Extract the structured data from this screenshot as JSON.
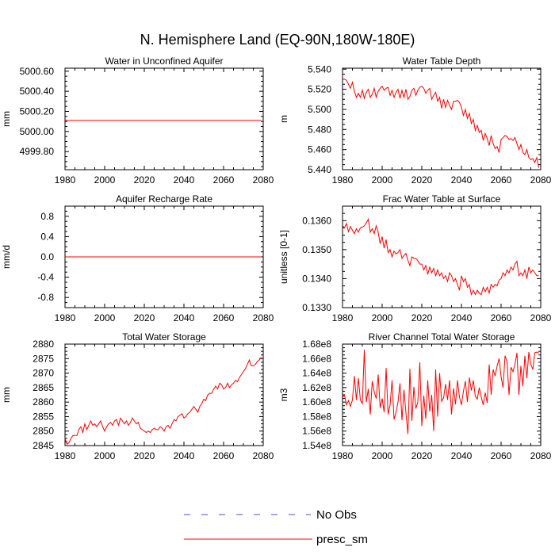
{
  "figure": {
    "title": "N. Hemisphere Land (EQ-90N,180W-180E)"
  },
  "legend": {
    "items": [
      {
        "label": "No Obs",
        "color": "#4b4bd1",
        "style": "dashed"
      },
      {
        "label": "presc_sm",
        "color": "#ff0000",
        "style": "solid"
      }
    ]
  },
  "colors": {
    "series": "#ff0000",
    "obs": "#4b4bd1"
  },
  "chart_data": [
    {
      "type": "line",
      "title": "Water in Unconfined Aquifer",
      "xlabel": "",
      "ylabel": "mm",
      "xlim": [
        1980,
        2080
      ],
      "ylim": [
        4999.62,
        5000.63
      ],
      "xticks": [
        1980,
        2000,
        2020,
        2040,
        2060,
        2080
      ],
      "xtick_labels": [
        "1980",
        "2000",
        "2020",
        "2040",
        "2060",
        "2080"
      ],
      "yticks": [
        4999.8,
        5000.0,
        5000.2,
        5000.4,
        5000.6
      ],
      "ytick_labels": [
        "4999.80",
        "5000.00",
        "5000.20",
        "5000.40",
        "5000.60"
      ],
      "series": [
        {
          "name": "presc_sm",
          "x_start": 1980,
          "x_step": 1,
          "values": [
            5000.11,
            5000.11,
            5000.11,
            5000.11,
            5000.11,
            5000.11,
            5000.11,
            5000.11,
            5000.11,
            5000.11,
            5000.11,
            5000.11,
            5000.11,
            5000.11,
            5000.11,
            5000.11,
            5000.11,
            5000.11,
            5000.11,
            5000.11,
            5000.11,
            5000.11,
            5000.11,
            5000.11,
            5000.11,
            5000.11,
            5000.11,
            5000.11,
            5000.11,
            5000.11,
            5000.11,
            5000.11,
            5000.11,
            5000.11,
            5000.11,
            5000.11,
            5000.11,
            5000.11,
            5000.11,
            5000.11,
            5000.11,
            5000.11,
            5000.11,
            5000.11,
            5000.11,
            5000.11,
            5000.11,
            5000.11,
            5000.11,
            5000.11,
            5000.11,
            5000.11,
            5000.11,
            5000.11,
            5000.11,
            5000.11,
            5000.11,
            5000.11,
            5000.11,
            5000.11,
            5000.11,
            5000.11,
            5000.11,
            5000.11,
            5000.11,
            5000.11,
            5000.11,
            5000.11,
            5000.11,
            5000.11,
            5000.11,
            5000.11,
            5000.11,
            5000.11,
            5000.11,
            5000.11,
            5000.11,
            5000.11,
            5000.11,
            5000.11,
            5000.11,
            5000.11,
            5000.11,
            5000.11,
            5000.11,
            5000.11,
            5000.11,
            5000.11,
            5000.11,
            5000.11,
            5000.11,
            5000.11,
            5000.11,
            5000.11,
            5000.11,
            5000.11,
            5000.11,
            5000.11,
            5000.11,
            5000.11
          ]
        }
      ]
    },
    {
      "type": "line",
      "title": "Water Table Depth",
      "xlabel": "",
      "ylabel": "m",
      "xlim": [
        1980,
        2080
      ],
      "ylim": [
        5.44,
        5.541
      ],
      "xticks": [
        1980,
        2000,
        2020,
        2040,
        2060,
        2080
      ],
      "xtick_labels": [
        "1980",
        "2000",
        "2020",
        "2040",
        "2060",
        "2080"
      ],
      "yticks": [
        5.44,
        5.46,
        5.48,
        5.5,
        5.52,
        5.54
      ],
      "ytick_labels": [
        "5.440",
        "5.460",
        "5.480",
        "5.500",
        "5.520",
        "5.540"
      ],
      "series": [
        {
          "name": "presc_sm",
          "x_start": 1980,
          "x_step": 1,
          "values": [
            5.53,
            5.53,
            5.529,
            5.525,
            5.521,
            5.527,
            5.518,
            5.512,
            5.516,
            5.512,
            5.519,
            5.511,
            5.517,
            5.52,
            5.512,
            5.515,
            5.521,
            5.512,
            5.518,
            5.521,
            5.523,
            5.519,
            5.521,
            5.522,
            5.514,
            5.519,
            5.512,
            5.517,
            5.52,
            5.511,
            5.519,
            5.512,
            5.52,
            5.51,
            5.513,
            5.519,
            5.521,
            5.514,
            5.519,
            5.522,
            5.523,
            5.521,
            5.516,
            5.519,
            5.521,
            5.51,
            5.514,
            5.517,
            5.508,
            5.512,
            5.501,
            5.51,
            5.502,
            5.509,
            5.504,
            5.5,
            5.508,
            5.508,
            5.509,
            5.507,
            5.502,
            5.494,
            5.5,
            5.491,
            5.496,
            5.486,
            5.49,
            5.479,
            5.484,
            5.477,
            5.479,
            5.469,
            5.476,
            5.471,
            5.464,
            5.474,
            5.466,
            5.461,
            5.463,
            5.457,
            5.47,
            5.472,
            5.474,
            5.473,
            5.47,
            5.471,
            5.469,
            5.472,
            5.466,
            5.46,
            5.465,
            5.457,
            5.455,
            5.46,
            5.452,
            5.45,
            5.451,
            5.447,
            5.452,
            5.442
          ]
        }
      ]
    },
    {
      "type": "line",
      "title": "Aquifer Recharge Rate",
      "xlabel": "",
      "ylabel": "mm/d",
      "xlim": [
        1980,
        2080
      ],
      "ylim": [
        -1.0,
        1.0
      ],
      "xticks": [
        1980,
        2000,
        2020,
        2040,
        2060,
        2080
      ],
      "xtick_labels": [
        "1980",
        "2000",
        "2020",
        "2040",
        "2060",
        "2080"
      ],
      "yticks": [
        -0.8,
        -0.4,
        0.0,
        0.4,
        0.8
      ],
      "ytick_labels": [
        "-0.8",
        "-0.4",
        "0.0",
        "0.4",
        "0.8"
      ],
      "series": [
        {
          "name": "presc_sm",
          "x_start": 1980,
          "x_step": 1,
          "values": [
            0,
            0,
            0,
            0,
            0,
            0,
            0,
            0,
            0,
            0,
            0,
            0,
            0,
            0,
            0,
            0,
            0,
            0,
            0,
            0,
            0,
            0,
            0,
            0,
            0,
            0,
            0,
            0,
            0,
            0,
            0,
            0,
            0,
            0,
            0,
            0,
            0,
            0,
            0,
            0,
            0,
            0,
            0,
            0,
            0,
            0,
            0,
            0,
            0,
            0,
            0,
            0,
            0,
            0,
            0,
            0,
            0,
            0,
            0,
            0,
            0,
            0,
            0,
            0,
            0,
            0,
            0,
            0,
            0,
            0,
            0,
            0,
            0,
            0,
            0,
            0,
            0,
            0,
            0,
            0,
            0,
            0,
            0,
            0,
            0,
            0,
            0,
            0,
            0,
            0,
            0,
            0,
            0,
            0,
            0,
            0,
            0,
            0,
            0,
            0
          ]
        }
      ]
    },
    {
      "type": "line",
      "title": "Frac Water Table at Surface",
      "xlabel": "",
      "ylabel": "unitless [0-1]",
      "xlim": [
        1980,
        2080
      ],
      "ylim": [
        0.133,
        0.1365
      ],
      "xticks": [
        1980,
        2000,
        2020,
        2040,
        2060,
        2080
      ],
      "xtick_labels": [
        "1980",
        "2000",
        "2020",
        "2040",
        "2060",
        "2080"
      ],
      "yticks": [
        0.133,
        0.134,
        0.135,
        0.136
      ],
      "ytick_labels": [
        "0.1330",
        "0.1340",
        "0.1350",
        "0.1360"
      ],
      "series": [
        {
          "name": "presc_sm",
          "x_start": 1980,
          "x_step": 1,
          "values": [
            0.13583,
            0.13575,
            0.1359,
            0.13562,
            0.1358,
            0.13567,
            0.13555,
            0.13572,
            0.1356,
            0.13575,
            0.13578,
            0.13582,
            0.13592,
            0.13605,
            0.1356,
            0.13572,
            0.13555,
            0.13582,
            0.1356,
            0.1352,
            0.13545,
            0.13505,
            0.13535,
            0.1349,
            0.135,
            0.13475,
            0.13495,
            0.13485,
            0.1349,
            0.135,
            0.1347,
            0.1348,
            0.13487,
            0.13463,
            0.13445,
            0.13475,
            0.1347,
            0.1347,
            0.13462,
            0.1345,
            0.1345,
            0.1343,
            0.13445,
            0.13415,
            0.1344,
            0.1342,
            0.13435,
            0.1341,
            0.1343,
            0.1341,
            0.1342,
            0.134,
            0.1341,
            0.1339,
            0.1342,
            0.1341,
            0.1339,
            0.134,
            0.1338,
            0.1336,
            0.1341,
            0.1339,
            0.134,
            0.1337,
            0.1338,
            0.13345,
            0.1336,
            0.13345,
            0.1336,
            0.1335,
            0.13345,
            0.1337,
            0.13355,
            0.1337,
            0.1335,
            0.1338,
            0.1337,
            0.1338,
            0.13375,
            0.13395,
            0.134,
            0.1342,
            0.1341,
            0.1343,
            0.1342,
            0.1344,
            0.1343,
            0.1345,
            0.1346,
            0.1341,
            0.1342,
            0.1341,
            0.1343,
            0.134,
            0.1344,
            0.1342,
            0.1343,
            0.1342,
            0.1341,
            0.1341
          ]
        }
      ]
    },
    {
      "type": "line",
      "title": "Total Water Storage",
      "xlabel": "",
      "ylabel": "mm",
      "xlim": [
        1980,
        2080
      ],
      "ylim": [
        2845,
        2880
      ],
      "xticks": [
        1980,
        2000,
        2020,
        2040,
        2060,
        2080
      ],
      "xtick_labels": [
        "1980",
        "2000",
        "2020",
        "2040",
        "2060",
        "2080"
      ],
      "yticks": [
        2845,
        2850,
        2855,
        2860,
        2865,
        2870,
        2875,
        2880
      ],
      "ytick_labels": [
        "2845",
        "2850",
        "2855",
        "2860",
        "2865",
        "2870",
        "2875",
        "2880"
      ],
      "series": [
        {
          "name": "presc_sm",
          "x_start": 1980,
          "x_step": 1,
          "values": [
            2847.5,
            2845.5,
            2846.0,
            2847.5,
            2848.5,
            2848.5,
            2848.5,
            2850.5,
            2851.5,
            2849.5,
            2852.5,
            2850.5,
            2852.0,
            2853.5,
            2852.0,
            2852.5,
            2851.5,
            2852.5,
            2853.5,
            2851.5,
            2850.0,
            2851.5,
            2852.5,
            2853.0,
            2852.0,
            2853.5,
            2854.0,
            2852.0,
            2854.5,
            2853.5,
            2852.5,
            2853.5,
            2852.0,
            2853.0,
            2854.5,
            2853.5,
            2852.5,
            2853.0,
            2851.0,
            2850.5,
            2850.0,
            2849.5,
            2850.0,
            2849.5,
            2850.5,
            2851.0,
            2850.5,
            2850.5,
            2851.5,
            2851.0,
            2850.0,
            2851.5,
            2852.0,
            2851.0,
            2852.5,
            2854.0,
            2853.5,
            2855.0,
            2855.5,
            2856.0,
            2854.5,
            2855.0,
            2856.0,
            2856.5,
            2857.5,
            2858.5,
            2857.5,
            2856.5,
            2858.5,
            2859.5,
            2861.0,
            2860.5,
            2862.5,
            2863.0,
            2863.0,
            2864.5,
            2865.5,
            2864.5,
            2866.5,
            2866.0,
            2864.5,
            2865.0,
            2866.5,
            2865.0,
            2866.0,
            2866.5,
            2867.5,
            2867.0,
            2868.5,
            2869.5,
            2870.5,
            2871.5,
            2873.0,
            2874.5,
            2872.5,
            2872.5,
            2873.0,
            2874.0,
            2874.5,
            2875.5
          ]
        }
      ]
    },
    {
      "type": "line",
      "title": "River Channel Total Water Storage",
      "xlabel": "",
      "ylabel": "m3",
      "xlim": [
        1980,
        2080
      ],
      "ylim": [
        154000000.0,
        168000000.0
      ],
      "xticks": [
        1980,
        2000,
        2020,
        2040,
        2060,
        2080
      ],
      "xtick_labels": [
        "1980",
        "2000",
        "2020",
        "2040",
        "2060",
        "2080"
      ],
      "yticks": [
        154000000.0,
        156000000.0,
        158000000.0,
        160000000.0,
        162000000.0,
        164000000.0,
        166000000.0,
        168000000.0
      ],
      "ytick_labels": [
        "1.54e8",
        "1.56e8",
        "1.58e8",
        "1.60e8",
        "1.62e8",
        "1.64e8",
        "1.66e8",
        "1.68e8"
      ],
      "series": [
        {
          "name": "presc_sm",
          "x_start": 1980,
          "x_step": 1,
          "values": [
            160600000.0,
            161000000.0,
            159600000.0,
            160200000.0,
            159400000.0,
            160300000.0,
            163600000.0,
            160300000.0,
            163300000.0,
            160300000.0,
            159800000.0,
            167200000.0,
            160000000.0,
            161800000.0,
            158300000.0,
            162900000.0,
            161400000.0,
            160500000.0,
            163800000.0,
            159200000.0,
            160500000.0,
            158600000.0,
            164700000.0,
            158300000.0,
            159600000.0,
            163000000.0,
            157600000.0,
            158600000.0,
            160000000.0,
            162600000.0,
            157500000.0,
            161700000.0,
            158500000.0,
            155600000.0,
            164600000.0,
            157400000.0,
            162100000.0,
            159100000.0,
            160000000.0,
            165500000.0,
            156700000.0,
            160900000.0,
            157700000.0,
            163000000.0,
            158700000.0,
            161000000.0,
            156000000.0,
            164500000.0,
            158000000.0,
            164000000.0,
            160100000.0,
            160600000.0,
            162500000.0,
            160300000.0,
            163000000.0,
            158300000.0,
            161900000.0,
            159700000.0,
            163000000.0,
            160700000.0,
            159600000.0,
            161500000.0,
            162900000.0,
            160000000.0,
            163400000.0,
            161600000.0,
            163000000.0,
            160800000.0,
            160400000.0,
            162000000.0,
            160700000.0,
            159600000.0,
            161300000.0,
            159900000.0,
            165200000.0,
            161000000.0,
            164500000.0,
            163600000.0,
            165000000.0,
            166000000.0,
            163500000.0,
            162000000.0,
            166400000.0,
            165600000.0,
            161000000.0,
            164800000.0,
            164200000.0,
            165200000.0,
            166800000.0,
            161000000.0,
            165000000.0,
            162200000.0,
            166400000.0,
            163300000.0,
            166900000.0,
            165200000.0,
            164500000.0,
            166800000.0,
            166900000.0,
            166800000.0
          ]
        }
      ]
    }
  ]
}
